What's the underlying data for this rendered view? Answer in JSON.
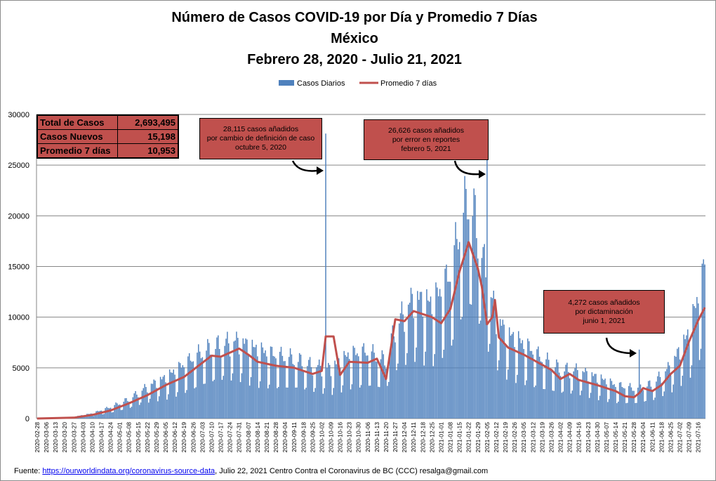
{
  "title": {
    "line1": "Número de  Casos  COVID-19 por Día y Promedio 7 Días",
    "line2": "México",
    "line3": "Febrero 28, 2020  - Julio 21, 2021"
  },
  "stats": [
    {
      "label": "Total de Casos",
      "value": "2,693,495"
    },
    {
      "label": "Casos Nuevos",
      "value": "15,198"
    },
    {
      "label": "Promedio 7 días",
      "value": "10,953"
    }
  ],
  "notes": [
    {
      "line1": "28,115 casos  añadidos",
      "line2": "por cambio de definición  de caso",
      "line3": "octubre  5, 2020"
    },
    {
      "line1": "26,626 casos  añadidos",
      "line2": "por error en reportes",
      "line3": "febrero  5, 2021"
    },
    {
      "line1": "4,272 casos  añadidos",
      "line2": "por dictaminación",
      "line3": "junio 1, 2021"
    }
  ],
  "footer": {
    "prefix": "Fuente:  ",
    "link": "https://ourworldindata.org/coronavirus-source-data",
    "suffix": ", Julio 22, 2021    Centro   Contra el Coronavirus de BC  (CCC) resalga@gmail.com"
  },
  "colors": {
    "bars": "#4f81bd",
    "line": "#c0504d",
    "grid": "#868686",
    "note_bg": "#c0504d"
  },
  "chart_data": {
    "type": "bar",
    "ylim": [
      0,
      30000
    ],
    "yticks": [
      0,
      5000,
      10000,
      15000,
      20000,
      25000,
      30000
    ],
    "x_start": "2020-02-28",
    "x_end": "2021-07-21",
    "xtick_step_days": 7,
    "grid": true,
    "legend_position": "top-center",
    "series": [
      {
        "name": "Casos Diarios",
        "type": "bar",
        "color": "#4f81bd",
        "anchors": [
          [
            "2020-02-28",
            0
          ],
          [
            "2020-03-15",
            10
          ],
          [
            "2020-03-27",
            150
          ],
          [
            "2020-04-10",
            450
          ],
          [
            "2020-04-24",
            1000
          ],
          [
            "2020-05-08",
            1700
          ],
          [
            "2020-05-22",
            2800
          ],
          [
            "2020-06-05",
            3600
          ],
          [
            "2020-06-19",
            4700
          ],
          [
            "2020-07-03",
            5800
          ],
          [
            "2020-07-17",
            6500
          ],
          [
            "2020-07-31",
            6800
          ],
          [
            "2020-08-14",
            6000
          ],
          [
            "2020-08-28",
            5500
          ],
          [
            "2020-09-11",
            5200
          ],
          [
            "2020-09-25",
            4600
          ],
          [
            "2020-10-09",
            4400
          ],
          [
            "2020-10-23",
            5600
          ],
          [
            "2020-11-06",
            5800
          ],
          [
            "2020-11-20",
            5000
          ],
          [
            "2020-11-27",
            8000
          ],
          [
            "2020-12-11",
            10600
          ],
          [
            "2020-12-25",
            10000
          ],
          [
            "2021-01-08",
            12500
          ],
          [
            "2021-01-15",
            16500
          ],
          [
            "2021-01-22",
            19500
          ],
          [
            "2021-01-29",
            16500
          ],
          [
            "2021-02-05",
            12000
          ],
          [
            "2021-02-12",
            9000
          ],
          [
            "2021-02-19",
            7500
          ],
          [
            "2021-03-05",
            6500
          ],
          [
            "2021-03-19",
            5200
          ],
          [
            "2021-04-02",
            4300
          ],
          [
            "2021-04-16",
            4200
          ],
          [
            "2021-04-30",
            3600
          ],
          [
            "2021-05-14",
            2900
          ],
          [
            "2021-05-28",
            2600
          ],
          [
            "2021-06-11",
            3000
          ],
          [
            "2021-06-25",
            4600
          ],
          [
            "2021-07-09",
            7500
          ],
          [
            "2021-07-21",
            13000
          ]
        ],
        "spikes": [
          [
            "2020-10-05",
            28115
          ],
          [
            "2021-02-05",
            26626
          ],
          [
            "2021-06-01",
            6800
          ],
          [
            "2021-07-21",
            15198
          ]
        ]
      },
      {
        "name": "Promedio 7 días",
        "type": "line",
        "color": "#c0504d",
        "points": [
          [
            "2020-02-28",
            0
          ],
          [
            "2020-03-27",
            80
          ],
          [
            "2020-04-10",
            350
          ],
          [
            "2020-04-24",
            800
          ],
          [
            "2020-05-08",
            1500
          ],
          [
            "2020-05-22",
            2300
          ],
          [
            "2020-06-05",
            3300
          ],
          [
            "2020-06-19",
            4100
          ],
          [
            "2020-07-03",
            5500
          ],
          [
            "2020-07-10",
            6200
          ],
          [
            "2020-07-17",
            6100
          ],
          [
            "2020-07-31",
            6900
          ],
          [
            "2020-08-07",
            6300
          ],
          [
            "2020-08-14",
            5600
          ],
          [
            "2020-08-28",
            5200
          ],
          [
            "2020-09-11",
            5000
          ],
          [
            "2020-09-25",
            4400
          ],
          [
            "2020-10-02",
            4700
          ],
          [
            "2020-10-05",
            8100
          ],
          [
            "2020-10-11",
            8100
          ],
          [
            "2020-10-16",
            4300
          ],
          [
            "2020-10-23",
            5600
          ],
          [
            "2020-11-06",
            5500
          ],
          [
            "2020-11-13",
            5900
          ],
          [
            "2020-11-20",
            3900
          ],
          [
            "2020-11-27",
            9800
          ],
          [
            "2020-12-04",
            9600
          ],
          [
            "2020-12-11",
            10600
          ],
          [
            "2020-12-25",
            10000
          ],
          [
            "2021-01-01",
            9400
          ],
          [
            "2021-01-08",
            10800
          ],
          [
            "2021-01-15",
            14500
          ],
          [
            "2021-01-22",
            17400
          ],
          [
            "2021-01-29",
            14800
          ],
          [
            "2021-02-01",
            13000
          ],
          [
            "2021-02-05",
            9300
          ],
          [
            "2021-02-09",
            10000
          ],
          [
            "2021-02-11",
            11700
          ],
          [
            "2021-02-14",
            8000
          ],
          [
            "2021-02-21",
            7000
          ],
          [
            "2021-03-05",
            6300
          ],
          [
            "2021-03-19",
            5300
          ],
          [
            "2021-03-26",
            4800
          ],
          [
            "2021-04-02",
            3900
          ],
          [
            "2021-04-09",
            4400
          ],
          [
            "2021-04-16",
            3800
          ],
          [
            "2021-04-30",
            3300
          ],
          [
            "2021-05-14",
            2700
          ],
          [
            "2021-05-21",
            2200
          ],
          [
            "2021-05-28",
            2100
          ],
          [
            "2021-06-01",
            2500
          ],
          [
            "2021-06-04",
            3000
          ],
          [
            "2021-06-11",
            2700
          ],
          [
            "2021-06-18",
            3300
          ],
          [
            "2021-06-25",
            4400
          ],
          [
            "2021-07-02",
            5200
          ],
          [
            "2021-07-09",
            7600
          ],
          [
            "2021-07-16",
            9700
          ],
          [
            "2021-07-21",
            10953
          ]
        ]
      }
    ]
  }
}
